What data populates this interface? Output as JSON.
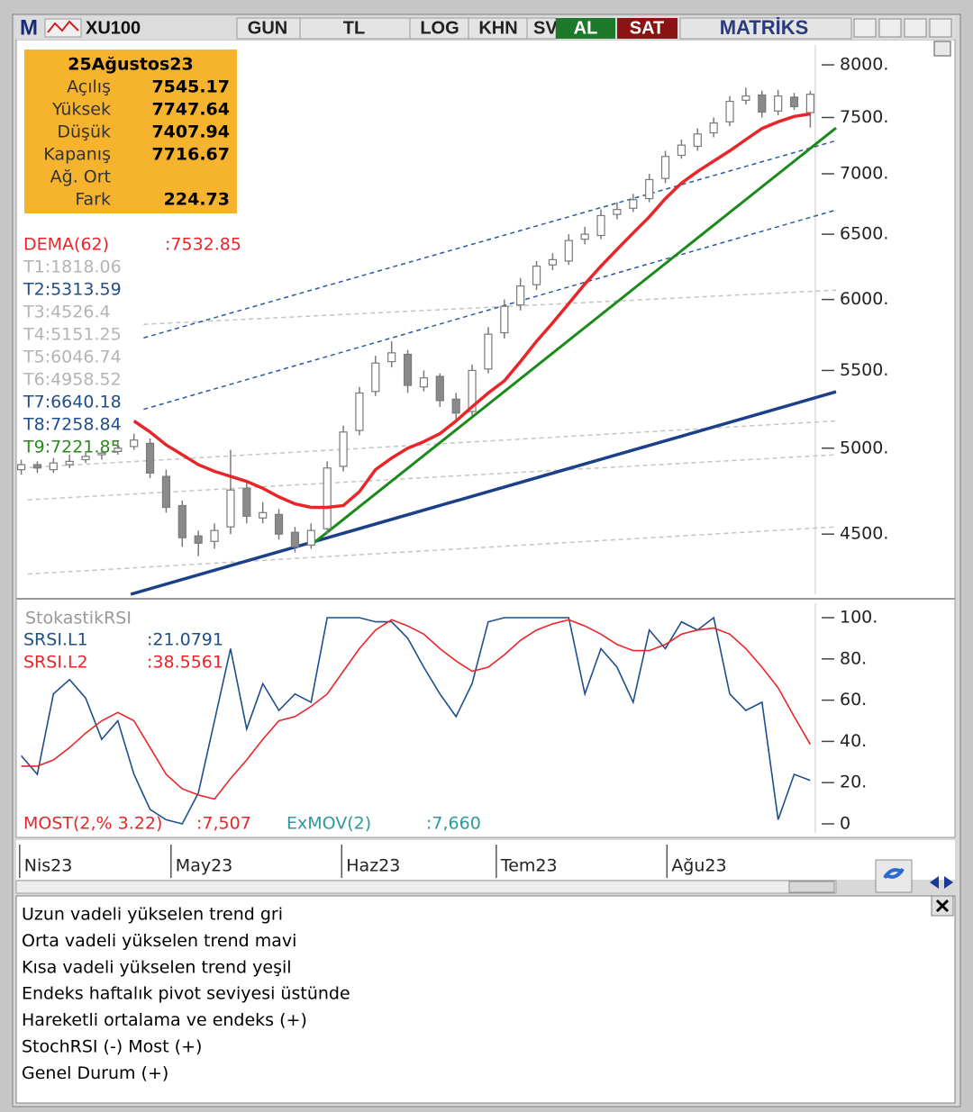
{
  "toolbar": {
    "logo": "M",
    "symbol": "XU100",
    "buttons": [
      "GUN",
      "TL",
      "LOG",
      "KHN",
      "SV"
    ],
    "buy": "AL",
    "sell": "SAT",
    "brand": "MATRİKS"
  },
  "info_box": {
    "date": "25Ağustos23",
    "rows": [
      {
        "label": "Açılış",
        "value": 7545.17
      },
      {
        "label": "Yüksek",
        "value": 7747.64
      },
      {
        "label": "Düşük",
        "value": 7407.94
      },
      {
        "label": "Kapanış",
        "value": 7716.67
      },
      {
        "label": "Ağ. Ort"
      },
      {
        "label": "Fark",
        "value": 224.73
      }
    ]
  },
  "indicator_labels": [
    {
      "text": "DEMA(62)",
      "value": ":7532.85",
      "color": "#e8262a"
    },
    {
      "text": "T1:1818.06",
      "color": "#b4b4b4"
    },
    {
      "text": "T2:5313.59",
      "color": "#1f4e8c"
    },
    {
      "text": "T3:4526.4",
      "color": "#b4b4b4"
    },
    {
      "text": "T4:5151.25",
      "color": "#b4b4b4"
    },
    {
      "text": "T5:6046.74",
      "color": "#b4b4b4"
    },
    {
      "text": "T6:4958.52",
      "color": "#b4b4b4"
    },
    {
      "text": "T7:6640.18",
      "color": "#1f4e8c"
    },
    {
      "text": "T8:7258.84",
      "color": "#1f4e8c"
    },
    {
      "text": "T9:7221.85",
      "color": "#2a8a1a"
    }
  ],
  "chart_data": [
    {
      "type": "candlestick",
      "log_scale": true,
      "ylim": [
        4180,
        8197
      ],
      "xlim": [
        -0.2,
        50.6
      ],
      "yticks": [
        {
          "value": 8000,
          "label": "8000."
        },
        {
          "value": 7500,
          "label": "7500."
        },
        {
          "value": 7000,
          "label": "7000."
        },
        {
          "value": 6500,
          "label": "6500."
        },
        {
          "value": 6000,
          "label": "6000."
        },
        {
          "value": 5500,
          "label": "5500."
        },
        {
          "value": 5000,
          "label": "5000."
        },
        {
          "value": 4500,
          "label": "4500."
        }
      ],
      "x": [
        0,
        1,
        2,
        3,
        4,
        5,
        6,
        7,
        8,
        9,
        10,
        11,
        12,
        13,
        14,
        15,
        16,
        17,
        18,
        19,
        20,
        21,
        22,
        23,
        24,
        25,
        26,
        27,
        28,
        29,
        30,
        31,
        32,
        33,
        34,
        35,
        36,
        37,
        38,
        39,
        40,
        41,
        42,
        43,
        44,
        45,
        46,
        47,
        48,
        49
      ],
      "up_color": "#ffffff",
      "down_color": "#8a8a8a",
      "wick_color": "#7a7a7a",
      "open": [
        4870,
        4900,
        4870,
        4900,
        4930,
        4960,
        4980,
        5010,
        5030,
        4830,
        4660,
        4490,
        4460,
        4540,
        4760,
        4590,
        4610,
        4510,
        4440,
        4530,
        4890,
        5110,
        5360,
        5560,
        5610,
        5390,
        5460,
        5310,
        5230,
        5510,
        5760,
        5960,
        6110,
        6260,
        6290,
        6460,
        6490,
        6660,
        6710,
        6790,
        6960,
        7160,
        7240,
        7360,
        7460,
        7660,
        7710,
        7560,
        7690,
        7545.17
      ],
      "high": [
        4930,
        4920,
        4940,
        4960,
        4980,
        5000,
        5040,
        5090,
        5060,
        4870,
        4690,
        4520,
        4560,
        4990,
        4800,
        4680,
        4640,
        4540,
        4560,
        4920,
        5140,
        5390,
        5600,
        5700,
        5640,
        5500,
        5480,
        5350,
        5540,
        5800,
        6000,
        6160,
        6290,
        6350,
        6500,
        6560,
        6700,
        6760,
        6830,
        7000,
        7200,
        7300,
        7400,
        7500,
        7700,
        7780,
        7750,
        7760,
        7730,
        7747.64
      ],
      "low": [
        4840,
        4850,
        4850,
        4880,
        4910,
        4930,
        4960,
        4990,
        4820,
        4620,
        4430,
        4380,
        4420,
        4500,
        4560,
        4560,
        4470,
        4400,
        4420,
        4500,
        4860,
        5080,
        5330,
        5520,
        5350,
        5360,
        5260,
        5180,
        5200,
        5480,
        5720,
        5920,
        6070,
        6220,
        6260,
        6420,
        6460,
        6620,
        6680,
        6760,
        6920,
        7130,
        7200,
        7320,
        7420,
        7620,
        7500,
        7520,
        7570,
        7407.94
      ],
      "close": [
        4900,
        4880,
        4910,
        4920,
        4950,
        4970,
        5000,
        5050,
        4850,
        4650,
        4480,
        4450,
        4520,
        4750,
        4600,
        4620,
        4500,
        4430,
        4520,
        4880,
        5100,
        5350,
        5550,
        5620,
        5400,
        5450,
        5300,
        5220,
        5500,
        5750,
        5950,
        6100,
        6250,
        6300,
        6450,
        6500,
        6650,
        6700,
        6780,
        6950,
        7150,
        7250,
        7350,
        7450,
        7650,
        7700,
        7550,
        7700,
        7600,
        7716.67
      ],
      "dema": {
        "color": "#e8262a",
        "values": [
          null,
          null,
          null,
          null,
          null,
          null,
          null,
          5170,
          5100,
          5020,
          4960,
          4900,
          4860,
          4830,
          4800,
          4760,
          4710,
          4670,
          4650,
          4650,
          4660,
          4740,
          4870,
          4940,
          5000,
          5040,
          5090,
          5170,
          5260,
          5350,
          5430,
          5560,
          5700,
          5830,
          5970,
          6115,
          6250,
          6380,
          6510,
          6640,
          6790,
          6920,
          7020,
          7110,
          7200,
          7300,
          7400,
          7460,
          7510,
          7532.85
        ]
      },
      "trendlines": [
        {
          "color": "#c4c4c4",
          "dashed": true,
          "width": 1.5,
          "x": [
            0.4,
            50.6
          ],
          "values": [
            4285,
            4540
          ]
        },
        {
          "color": "#c4c4c4",
          "dashed": true,
          "width": 1.5,
          "x": [
            0.4,
            50.6
          ],
          "values": [
            4693,
            4960
          ]
        },
        {
          "color": "#c4c4c4",
          "dashed": true,
          "width": 1.5,
          "x": [
            0,
            50.6
          ],
          "values": [
            4880,
            5170
          ]
        },
        {
          "color": "#c4c4c4",
          "dashed": true,
          "width": 1.5,
          "x": [
            7.6,
            50.6
          ],
          "values": [
            5820,
            6069
          ]
        },
        {
          "color": "#2a5aa0",
          "dashed": true,
          "width": 1.5,
          "x": [
            7.6,
            50.6
          ],
          "values": [
            5724,
            7290
          ]
        },
        {
          "color": "#2a5aa0",
          "dashed": true,
          "width": 1.5,
          "x": [
            7.6,
            50.6
          ],
          "values": [
            5244,
            6696
          ]
        },
        {
          "color": "#1c3f8a",
          "dashed": false,
          "width": 3.5,
          "x": [
            6.8,
            50.6
          ],
          "values": [
            4180,
            5358
          ]
        },
        {
          "color": "#1a8a1a",
          "dashed": false,
          "width": 3,
          "x": [
            18,
            50.6
          ],
          "values": [
            4440,
            7405
          ]
        }
      ]
    },
    {
      "type": "line",
      "title": "StokastikRSI",
      "ylim": [
        0,
        100
      ],
      "xlim": [
        -0.2,
        50.6
      ],
      "yticks": [
        {
          "value": 100,
          "label": "100."
        },
        {
          "value": 80,
          "label": "80."
        },
        {
          "value": 60,
          "label": "60."
        },
        {
          "value": 40,
          "label": "40."
        },
        {
          "value": 20,
          "label": "20."
        },
        0
      ],
      "xticks": [
        {
          "value": -0.1,
          "label": "Nis23"
        },
        {
          "value": 9.3,
          "label": "May23"
        },
        {
          "value": 19.9,
          "label": "Haz23"
        },
        {
          "value": 29.5,
          "label": "Tem23"
        },
        {
          "value": 40.1,
          "label": "Ağu23"
        }
      ],
      "x": [
        0,
        1,
        2,
        3,
        4,
        5,
        6,
        7,
        8,
        9,
        10,
        11,
        12,
        13,
        14,
        15,
        16,
        17,
        18,
        19,
        20,
        21,
        22,
        23,
        24,
        25,
        26,
        27,
        28,
        29,
        30,
        31,
        32,
        33,
        34,
        35,
        36,
        37,
        38,
        39,
        40,
        41,
        42,
        43,
        44,
        45,
        46,
        47,
        48,
        49
      ],
      "series": [
        {
          "name": "SRSI.L1",
          "current": ":21.0791",
          "color": "#1f4e8c",
          "values": [
            33,
            24,
            63,
            70,
            61,
            41,
            50,
            24,
            7,
            2,
            0,
            15,
            50,
            85,
            46,
            68,
            55,
            63,
            59,
            100,
            100,
            100,
            98,
            98,
            90,
            76,
            63,
            52,
            68,
            98,
            100,
            100,
            100,
            100,
            100,
            63,
            85,
            76,
            59,
            94,
            85,
            98,
            94,
            100,
            63,
            55,
            59,
            2,
            24,
            21.0791
          ]
        },
        {
          "name": "SRSI.L2",
          "current": ":38.5561",
          "color": "#e8262a",
          "values": [
            28,
            28,
            31,
            37,
            44,
            50,
            54,
            50,
            37,
            24,
            17,
            14,
            12,
            22,
            31,
            41,
            50,
            52,
            57,
            63,
            74,
            85,
            94,
            99,
            96,
            92,
            85,
            79,
            74,
            76,
            82,
            89,
            94,
            97,
            99,
            96,
            92,
            87,
            84,
            84,
            87,
            92,
            94,
            95,
            92,
            85,
            76,
            66,
            52,
            38.5561
          ]
        }
      ],
      "footer_labels": [
        {
          "text": "MOST(2,% 3.22)",
          "value": ":7,507",
          "color": "#e8262a"
        },
        {
          "text": "ExMOV(2)",
          "value": ":7,660",
          "color": "#2a9a9a"
        }
      ]
    }
  ],
  "notes": [
    "Uzun vadeli yükselen trend gri",
    "Orta vadeli yükselen trend mavi",
    "Kısa vadeli yükselen trend yeşil",
    "Endeks haftalık pivot seviyesi üstünde",
    "Hareketli ortalama ve endeks (+)",
    "StochRSI (-) Most  (+)",
    "Genel Durum (+)"
  ]
}
